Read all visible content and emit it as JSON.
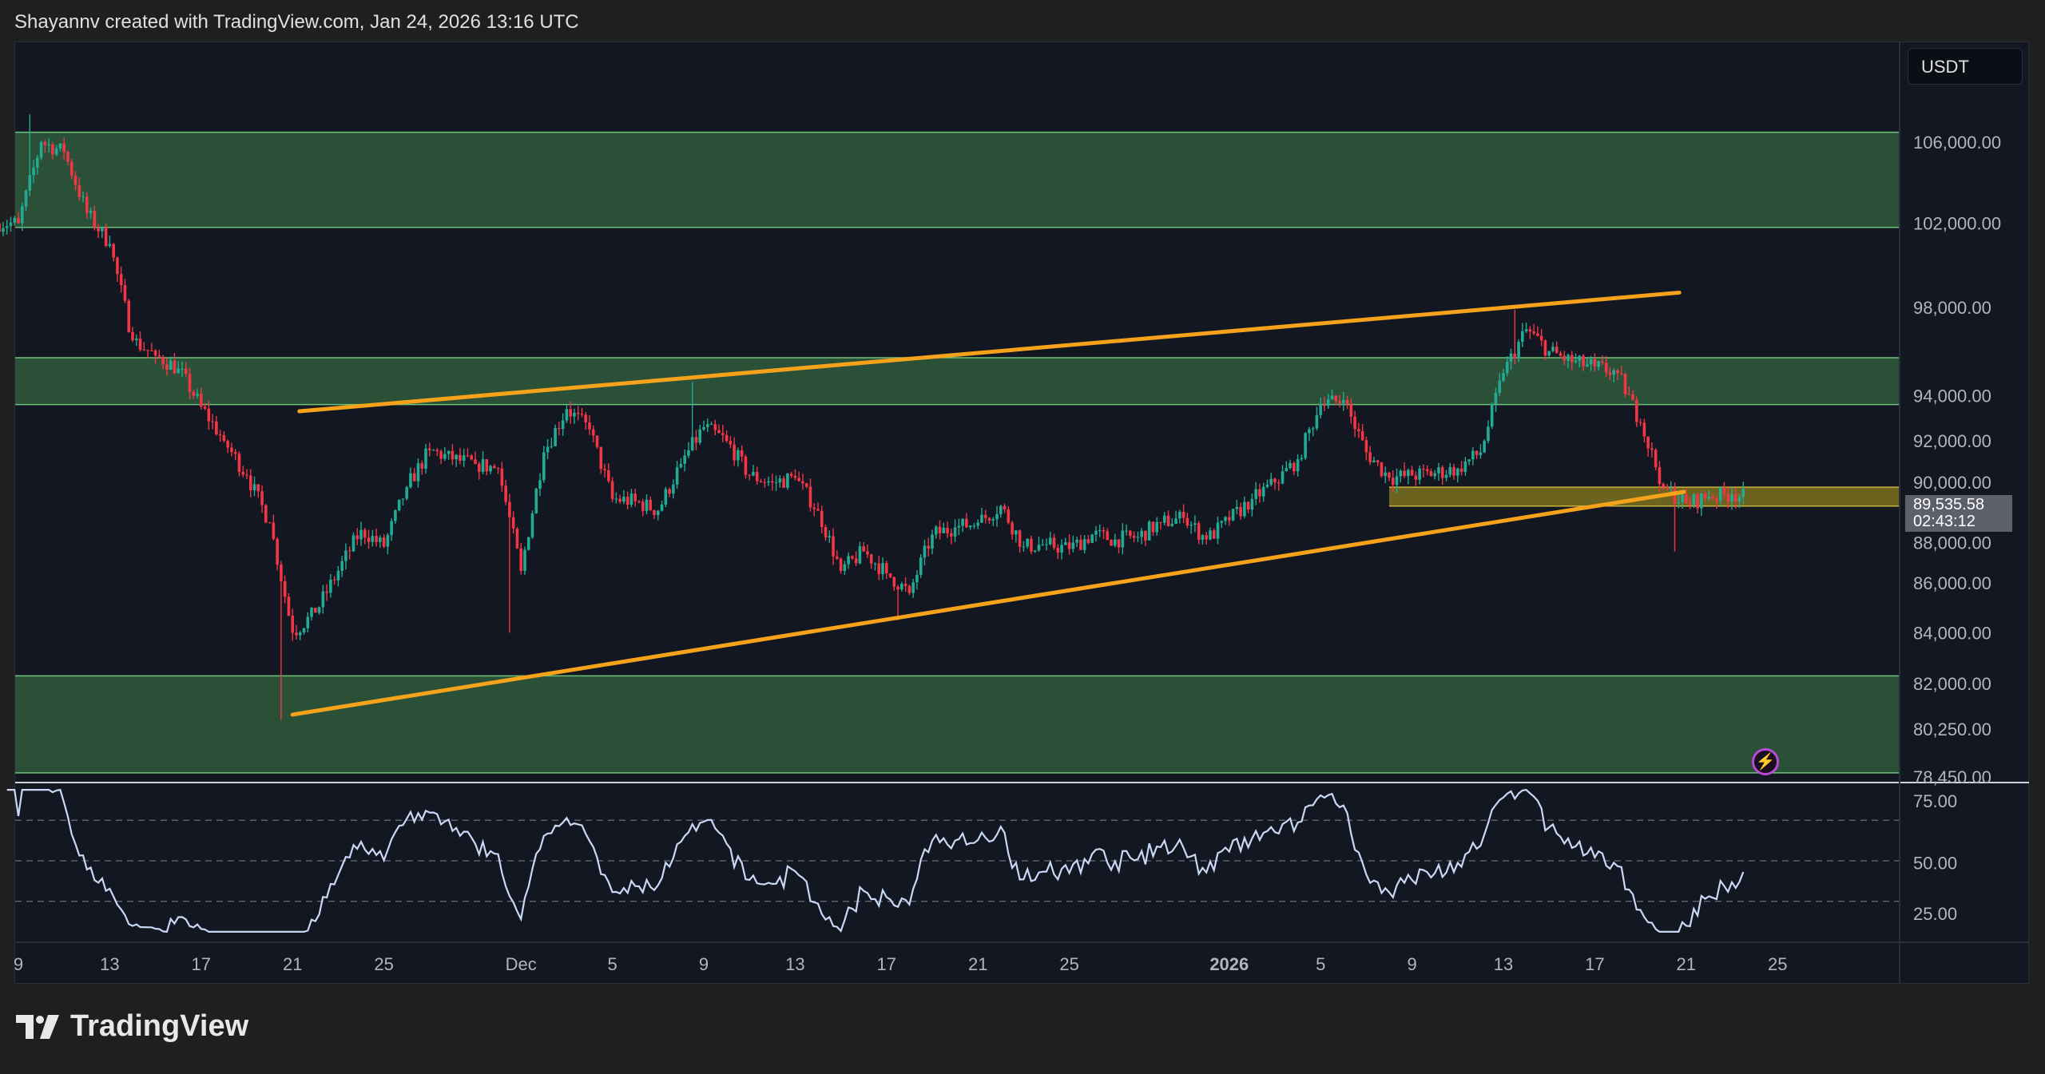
{
  "header": {
    "text": "Shayannv created with TradingView.com, Jan 24, 2026 13:16 UTC"
  },
  "currency_button": "USDT",
  "logo": {
    "text": "TradingView",
    "icon": "tradingview-logo-icon"
  },
  "last_price": {
    "price": "89,535.58",
    "countdown": "02:43:12"
  },
  "alert_icon": "lightning-icon",
  "colors": {
    "up": "#22ab94",
    "down": "#f23645",
    "zone": "#2f5c3c",
    "zone_line": "#6fc27a",
    "trendline": "#f7a21b",
    "yellow_zone": "#8a7d1e",
    "rsi": "#c9d8f5"
  },
  "chart_data": {
    "type": "candlestick",
    "symbol_quote": "USDT",
    "start_date": "Nov 9",
    "interval_note": "daily closes, sub-daily candles derived",
    "daily_closes": [
      102000,
      106000,
      105500,
      102500,
      101000,
      96500,
      95800,
      95200,
      93500,
      92000,
      90500,
      88500,
      84000,
      84800,
      86500,
      88200,
      87500,
      90000,
      91600,
      91200,
      91000,
      90800,
      86500,
      91500,
      93400,
      92500,
      89500,
      89400,
      89000,
      91000,
      92600,
      92000,
      90500,
      90200,
      90400,
      89000,
      86500,
      87300,
      86400,
      85600,
      88000,
      88300,
      88500,
      89200,
      87500,
      87600,
      87400,
      88000,
      87800,
      87900,
      88500,
      88700,
      87800,
      88600,
      89500,
      90200,
      91200,
      93600,
      93800,
      91500,
      90400,
      90500,
      90600,
      90800,
      91500,
      95000,
      97000,
      96000,
      95500,
      95300,
      95000,
      92800,
      90000,
      89300,
      89600,
      89700,
      89536
    ],
    "extremes": [
      {
        "day": 1,
        "high": 107400
      },
      {
        "day": 12,
        "low": 80600
      },
      {
        "day": 22,
        "low": 84000
      },
      {
        "day": 30,
        "high": 94600
      },
      {
        "day": 39,
        "low": 84500
      },
      {
        "day": 66,
        "high": 97900
      },
      {
        "day": 73,
        "low": 87300
      }
    ],
    "price_axis": {
      "scale": "log",
      "range": [
        78450,
        110000
      ],
      "ticks": [
        "106,000.00",
        "102,000.00",
        "98,000.00",
        "94,000.00",
        "92,000.00",
        "90,000.00",
        "88,000.00",
        "86,000.00",
        "84,000.00",
        "82,000.00",
        "80,250.00",
        "78,450.00"
      ],
      "tick_values": [
        106000,
        102000,
        98000,
        94000,
        92000,
        90000,
        88000,
        86000,
        84000,
        82000,
        80250,
        78450
      ]
    },
    "time_axis": {
      "labels": [
        "9",
        "13",
        "17",
        "21",
        "25",
        "Dec",
        "5",
        "9",
        "13",
        "17",
        "21",
        "25",
        "2026",
        "5",
        "9",
        "13",
        "17",
        "21",
        "25"
      ],
      "day_index": [
        0,
        4,
        8,
        12,
        16,
        22,
        26,
        30,
        34,
        38,
        42,
        46,
        53,
        57,
        61,
        65,
        69,
        73,
        77
      ]
    },
    "zones": [
      {
        "name": "supply-zone",
        "from": 101800,
        "to": 106500,
        "color": "green"
      },
      {
        "name": "resistance-band",
        "from": 93600,
        "to": 95700,
        "color": "green"
      },
      {
        "name": "demand-zone",
        "from": 78600,
        "to": 82300,
        "color": "green"
      },
      {
        "name": "support-band",
        "from": 89200,
        "to": 90000,
        "start_day": 60,
        "color": "yellow"
      }
    ],
    "trendlines": [
      {
        "name": "channel-upper",
        "from": {
          "day": 12.3,
          "price": 93300
        },
        "to": {
          "day": 72.7,
          "price": 98700
        }
      },
      {
        "name": "channel-lower",
        "from": {
          "day": 12,
          "price": 80800
        },
        "to": {
          "day": 72.9,
          "price": 89800
        }
      }
    ],
    "rsi": {
      "period": 14,
      "ticks": [
        "75.00",
        "50.00",
        "25.00"
      ],
      "tick_values": [
        75,
        50,
        25
      ],
      "bands": [
        70,
        50,
        30
      ]
    }
  }
}
